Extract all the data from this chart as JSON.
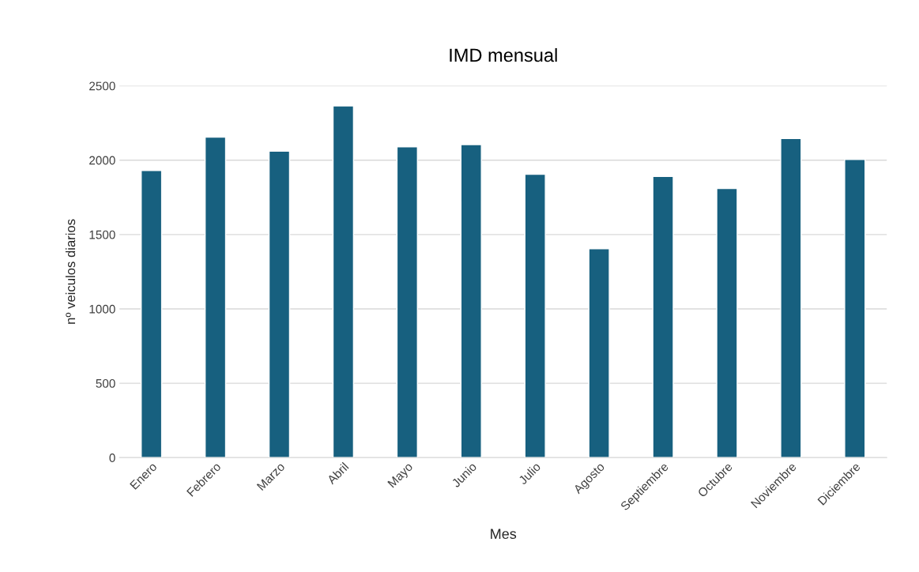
{
  "chart_data": {
    "type": "bar",
    "title": "IMD mensual",
    "xlabel": "Mes",
    "ylabel": "nº veiculos diarios",
    "categories": [
      "Enero",
      "Febrero",
      "Marzo",
      "Abril",
      "Mayo",
      "Junio",
      "Julio",
      "Agosto",
      "Septiembre",
      "Octubre",
      "Noviembre",
      "Diciembre"
    ],
    "values": [
      1930,
      2155,
      2060,
      2365,
      2090,
      2105,
      1905,
      1405,
      1890,
      1810,
      2145,
      2005
    ],
    "color": "#17607f",
    "ylim": [
      0,
      2500
    ],
    "yticks": [
      0,
      500,
      1000,
      1500,
      2000,
      2500
    ],
    "grid": "y"
  }
}
